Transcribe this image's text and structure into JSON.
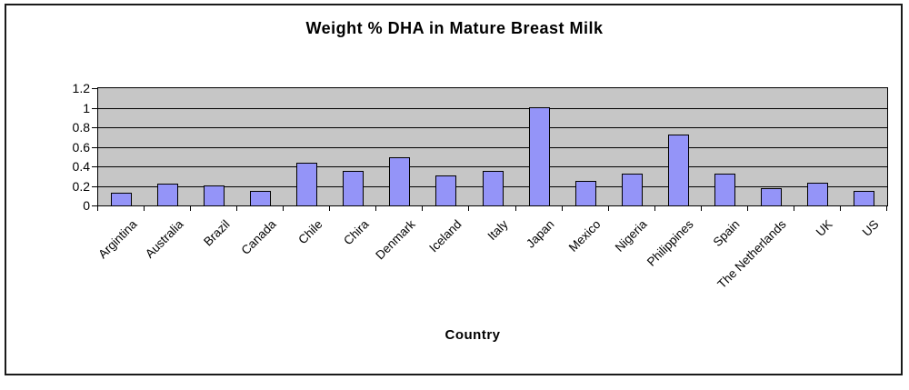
{
  "chart_data": {
    "type": "bar",
    "title": "Weight % DHA in Mature Breast Milk",
    "xlabel": "Country",
    "ylabel": "",
    "ylim": [
      0,
      1.2
    ],
    "ytick_labels": [
      "0",
      "0.2",
      "0.4",
      "0.6",
      "0.8",
      "1",
      "1.2"
    ],
    "grid": true,
    "legend": false,
    "categories": [
      "Argintina",
      "Australia",
      "Brazil",
      "Canada",
      "Chile",
      "Chira",
      "Denmark",
      "Iceland",
      "Italy",
      "Japan",
      "Mexico",
      "Nigeria",
      "Philippines",
      "Spain",
      "The Netherlands",
      "UK",
      "US"
    ],
    "values": [
      0.13,
      0.22,
      0.2,
      0.15,
      0.44,
      0.35,
      0.49,
      0.31,
      0.35,
      1.0,
      0.25,
      0.33,
      0.73,
      0.33,
      0.18,
      0.23,
      0.15
    ],
    "colors": {
      "bar_fill": "#9494f8",
      "bar_border": "#000000",
      "plot_bg": "#c6c6c6",
      "grid_color": "#000000",
      "text_color": "#000000",
      "frame_border": "#1a1a1a"
    }
  }
}
